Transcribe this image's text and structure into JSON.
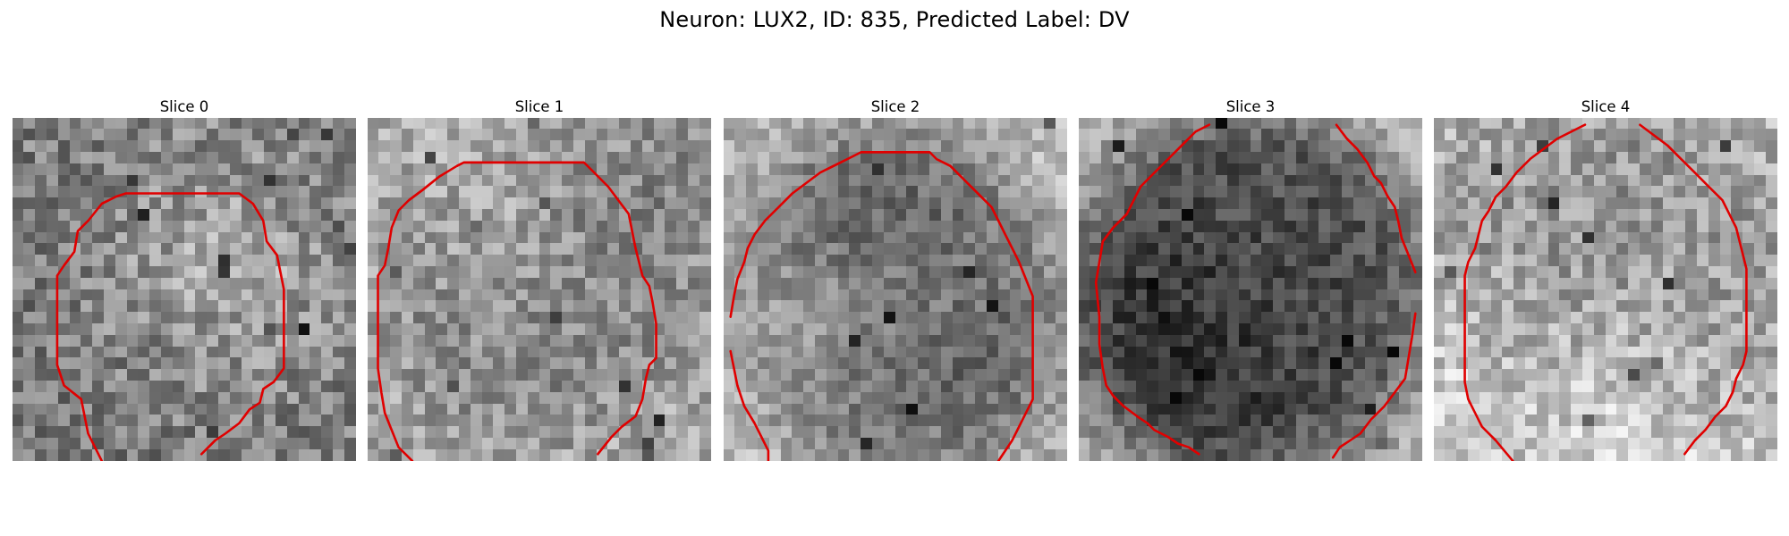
{
  "figure": {
    "title": "Neuron: LUX2, ID: 835, Predicted Label: DV"
  },
  "colors": {
    "contour": "#e00000",
    "background": "#ffffff",
    "colormap": "grayscale"
  },
  "panels": [
    {
      "label": "Slice 0"
    },
    {
      "label": "Slice 1"
    },
    {
      "label": "Slice 2"
    },
    {
      "label": "Slice 3"
    },
    {
      "label": "Slice 4"
    }
  ]
}
